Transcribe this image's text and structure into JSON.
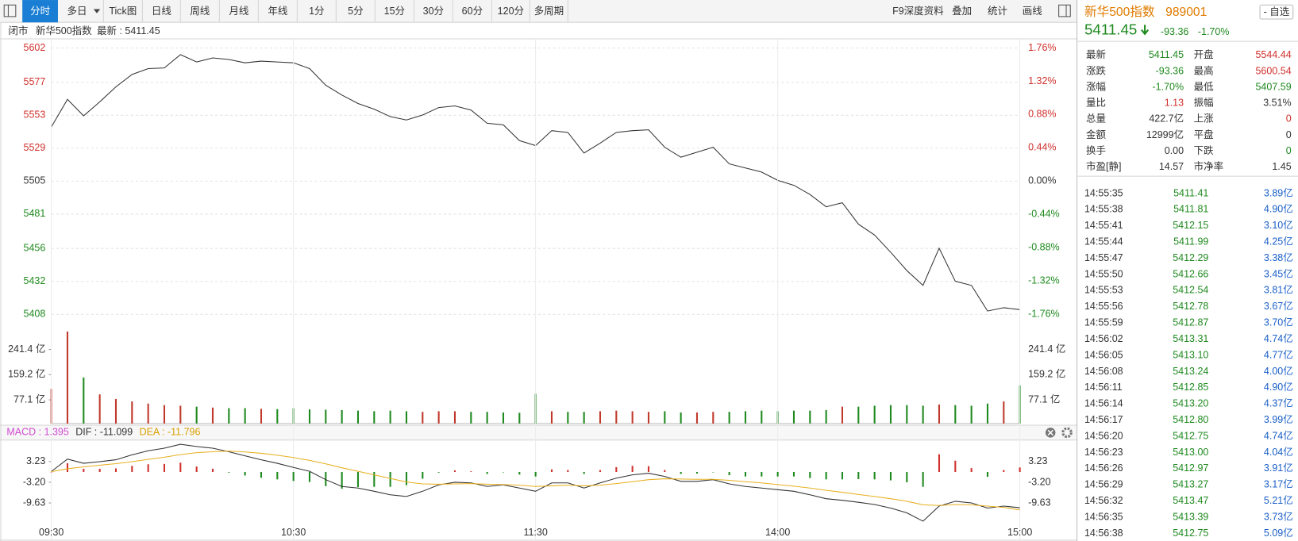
{
  "toolbar": {
    "left": [
      "分时",
      "多日",
      "Tick图",
      "日线",
      "周线",
      "月线",
      "年线",
      "1分",
      "5分",
      "15分",
      "30分",
      "60分",
      "120分",
      "多周期"
    ],
    "right": [
      "F9深度资料",
      "叠加",
      "统计",
      "画线"
    ]
  },
  "info_bar": [
    "闭市",
    "新华500指数",
    "最新 : 5411.45"
  ],
  "chart_data": [
    {
      "type": "line",
      "x": [
        0,
        4,
        8,
        12,
        16,
        20,
        24,
        28,
        32,
        36,
        40,
        44,
        48,
        52,
        56,
        60,
        64,
        68,
        72,
        76,
        80,
        84,
        88,
        92,
        96,
        100,
        104,
        108,
        112,
        116,
        120,
        124,
        128,
        132,
        136,
        140,
        144,
        148,
        152,
        156,
        160,
        164,
        168,
        172,
        176,
        180,
        184,
        188,
        192,
        196,
        200,
        204,
        208,
        212,
        216,
        220,
        224,
        228,
        232,
        236,
        240
      ],
      "values": [
        5544.44,
        5564.6,
        5552.6,
        5562.8,
        5573.7,
        5582.7,
        5587.0,
        5587.5,
        5597.2,
        5591.8,
        5594.8,
        5593.6,
        5591.2,
        5592.4,
        5591.8,
        5591.2,
        5587.0,
        5574.9,
        5567.7,
        5561.6,
        5557.4,
        5552.0,
        5549.6,
        5553.2,
        5558.6,
        5559.8,
        5556.8,
        5547.2,
        5546.0,
        5534.5,
        5530.9,
        5541.8,
        5540.5,
        5525.5,
        5532.7,
        5540.5,
        5541.8,
        5542.4,
        5529.7,
        5522.5,
        5526.1,
        5529.7,
        5517.6,
        5514.6,
        5511.6,
        5505.6,
        5502.0,
        5495.3,
        5486.3,
        5489.3,
        5473.7,
        5465.8,
        5453.2,
        5439.9,
        5429.1,
        5456.2,
        5432.1,
        5429.1,
        5410.4,
        5412.8,
        5411.45
      ],
      "color": "#333333",
      "xlim": [
        0,
        240
      ],
      "ylim": [
        5408,
        5602
      ],
      "yticks": [
        5602,
        5577,
        5553,
        5529,
        5505,
        5481,
        5456,
        5432,
        5408
      ],
      "y2lim": [
        -1.76,
        1.76
      ],
      "y2ticks": [
        {
          "value": 1.76,
          "label": "1.76%"
        },
        {
          "value": 1.32,
          "label": "1.32%"
        },
        {
          "value": 0.88,
          "label": "0.88%"
        },
        {
          "value": 0.44,
          "label": "0.44%"
        },
        {
          "value": 0,
          "label": "0.00%"
        },
        {
          "value": -0.44,
          "label": "-0.44%"
        },
        {
          "value": -0.88,
          "label": "-0.88%"
        },
        {
          "value": -1.32,
          "label": "-1.32%"
        },
        {
          "value": -1.76,
          "label": "-1.76%"
        }
      ],
      "grid": true,
      "tick_colors": "by_sign",
      "up_color": "#d0312d",
      "down_color": "#1f8a1f"
    },
    {
      "type": "bar",
      "x": [
        0,
        4,
        8,
        12,
        16,
        20,
        24,
        28,
        32,
        36,
        40,
        44,
        48,
        52,
        56,
        60,
        64,
        68,
        72,
        76,
        80,
        84,
        88,
        92,
        96,
        100,
        104,
        108,
        112,
        116,
        120,
        124,
        128,
        132,
        136,
        140,
        144,
        148,
        152,
        156,
        160,
        164,
        168,
        172,
        176,
        180,
        184,
        188,
        192,
        196,
        200,
        204,
        208,
        212,
        216,
        220,
        224,
        228,
        232,
        236,
        240
      ],
      "values": [
        113,
        300,
        150,
        95,
        80,
        72,
        65,
        60,
        58,
        55,
        52,
        50,
        50,
        48,
        47,
        50,
        46,
        45,
        44,
        42,
        40,
        42,
        40,
        38,
        40,
        40,
        38,
        38,
        36,
        35,
        97,
        40,
        38,
        38,
        40,
        42,
        40,
        38,
        40,
        36,
        36,
        38,
        38,
        40,
        42,
        40,
        42,
        42,
        44,
        55,
        55,
        58,
        60,
        60,
        58,
        62,
        60,
        58,
        65,
        72,
        124
      ],
      "xlim": [
        0,
        240
      ],
      "ylim": [
        0,
        329
      ],
      "yticks": [
        {
          "value": 241.4,
          "label": "241.4 亿"
        },
        {
          "value": 159.2,
          "label": "159.2 亿"
        },
        {
          "value": 77.1,
          "label": "77.1 亿"
        }
      ],
      "ticks_both_sides": true,
      "up_color": "#c0392b",
      "down_color": "#1f8a1f"
    },
    {
      "type": "macd",
      "legend": [
        {
          "text": "MACD : 1.395",
          "color": "#d24bd2"
        },
        {
          "text": "DIF : -11.099",
          "color": "#333333"
        },
        {
          "text": "DEA : -11.796",
          "color": "#d9a000"
        }
      ],
      "x": [
        0,
        4,
        8,
        12,
        16,
        20,
        24,
        28,
        32,
        36,
        40,
        44,
        48,
        52,
        56,
        60,
        64,
        68,
        72,
        76,
        80,
        84,
        88,
        92,
        96,
        100,
        104,
        108,
        112,
        116,
        120,
        124,
        128,
        132,
        136,
        140,
        144,
        148,
        152,
        156,
        160,
        164,
        168,
        172,
        176,
        180,
        184,
        188,
        192,
        196,
        200,
        204,
        208,
        212,
        216,
        220,
        224,
        228,
        232,
        236,
        240
      ],
      "xlim": [
        0,
        240
      ],
      "ylim": [
        -20.4,
        9.14
      ],
      "yticks": [
        3.23,
        {
          "value": -3.2,
          "label": "-3.20"
        },
        -9.63
      ],
      "xticks": [
        {
          "value": 0,
          "label": "09:30"
        },
        {
          "value": 60,
          "label": "10:30"
        },
        {
          "value": 120,
          "label": "11:30"
        },
        {
          "value": 180,
          "label": "14:00"
        },
        {
          "value": 240,
          "label": "15:00"
        }
      ],
      "ticks_both_sides": true,
      "xgrid": true,
      "series": [
        {
          "style": "bar",
          "up_color": "#d0312d",
          "down_color": "#1f8a1f",
          "values": [
            0.0,
            2.7,
            1.0,
            1.0,
            1.1,
            1.9,
            2.4,
            2.5,
            2.9,
            1.7,
            1.0,
            -0.2,
            -1.1,
            -1.8,
            -2.3,
            -2.8,
            -3.1,
            -4.4,
            -5.2,
            -4.7,
            -4.6,
            -4.6,
            -4.1,
            -2.1,
            -0.2,
            0.5,
            0.2,
            -0.6,
            -0.1,
            -0.8,
            -1.4,
            0.8,
            0.6,
            -0.6,
            0.6,
            1.5,
            1.9,
            1.8,
            0.6,
            -0.6,
            -0.5,
            -0.1,
            -1.0,
            -1.4,
            -1.4,
            -1.4,
            -1.4,
            -1.9,
            -2.3,
            -2.3,
            -2.2,
            -2.3,
            -2.6,
            -3.2,
            -4.6,
            5.5,
            3.5,
            1.2,
            -1.5,
            0.6,
            1.395
          ]
        },
        {
          "style": "line",
          "color": "#333333",
          "values": [
            0.15,
            4.0,
            2.7,
            3.2,
            3.8,
            5.3,
            6.6,
            7.4,
            8.6,
            7.9,
            7.4,
            6.3,
            5.0,
            3.8,
            2.7,
            1.4,
            0.2,
            -2.4,
            -4.5,
            -5.0,
            -6.0,
            -7.1,
            -7.6,
            -6.0,
            -4.0,
            -3.2,
            -3.4,
            -4.5,
            -4.0,
            -5.0,
            -6.0,
            -3.4,
            -3.4,
            -5.0,
            -3.4,
            -1.9,
            -0.9,
            -0.4,
            -1.4,
            -2.9,
            -2.9,
            -2.4,
            -3.7,
            -4.5,
            -5.0,
            -5.5,
            -6.0,
            -7.1,
            -8.3,
            -8.8,
            -9.4,
            -10.1,
            -11.2,
            -12.7,
            -15.3,
            -10.6,
            -9.1,
            -9.6,
            -11.2,
            -10.6,
            -11.099
          ]
        },
        {
          "style": "line",
          "color": "#e8b020",
          "values": [
            0.1,
            1.0,
            1.6,
            2.1,
            2.6,
            3.2,
            3.9,
            4.6,
            5.4,
            6.0,
            6.3,
            6.5,
            6.2,
            5.8,
            5.2,
            4.5,
            3.6,
            2.5,
            1.3,
            0.2,
            -0.9,
            -2.0,
            -3.1,
            -3.7,
            -3.8,
            -3.7,
            -3.6,
            -3.8,
            -3.9,
            -4.1,
            -4.5,
            -4.3,
            -4.1,
            -4.3,
            -4.1,
            -3.6,
            -3.0,
            -2.4,
            -2.1,
            -2.2,
            -2.3,
            -2.3,
            -2.6,
            -3.0,
            -3.4,
            -3.9,
            -4.4,
            -5.0,
            -5.7,
            -6.3,
            -7.0,
            -7.6,
            -8.3,
            -9.1,
            -10.2,
            -10.4,
            -10.1,
            -10.2,
            -10.6,
            -11.0,
            -11.796
          ]
        }
      ]
    }
  ],
  "quote_header": {
    "name": "新华500指数",
    "code": "989001",
    "button": "- 自选",
    "price": "5411.45",
    "change": "-93.36",
    "change_pct": "-1.70%"
  },
  "quote": {
    "rows": [
      [
        "最新",
        "5411.45",
        "开盘",
        "5544.44"
      ],
      [
        "涨跌",
        "-93.36",
        "最高",
        "5600.54"
      ],
      [
        "涨幅",
        "-1.70%",
        "最低",
        "5407.59"
      ],
      [
        "量比",
        "1.13",
        "振幅",
        "3.51%"
      ],
      [
        "总量",
        "422.7亿",
        "上涨",
        "0"
      ],
      [
        "金额",
        "12999亿",
        "平盘",
        "0"
      ],
      [
        "换手",
        "0.00",
        "下跌",
        "0"
      ],
      [
        "市盈[静]",
        "14.57",
        "市净率",
        "1.45"
      ]
    ]
  },
  "trades": {
    "rows": [
      [
        "14:55:35",
        "5411.41",
        "3.89亿"
      ],
      [
        "14:55:38",
        "5411.81",
        "4.90亿"
      ],
      [
        "14:55:41",
        "5412.15",
        "3.10亿"
      ],
      [
        "14:55:44",
        "5411.99",
        "4.25亿"
      ],
      [
        "14:55:47",
        "5412.29",
        "3.38亿"
      ],
      [
        "14:55:50",
        "5412.66",
        "3.45亿"
      ],
      [
        "14:55:53",
        "5412.54",
        "3.81亿"
      ],
      [
        "14:55:56",
        "5412.78",
        "3.67亿"
      ],
      [
        "14:55:59",
        "5412.87",
        "3.70亿"
      ],
      [
        "14:56:02",
        "5413.31",
        "4.74亿"
      ],
      [
        "14:56:05",
        "5413.10",
        "4.77亿"
      ],
      [
        "14:56:08",
        "5413.24",
        "4.00亿"
      ],
      [
        "14:56:11",
        "5412.85",
        "4.90亿"
      ],
      [
        "14:56:14",
        "5413.20",
        "4.37亿"
      ],
      [
        "14:56:17",
        "5412.80",
        "3.99亿"
      ],
      [
        "14:56:20",
        "5412.75",
        "4.74亿"
      ],
      [
        "14:56:23",
        "5413.00",
        "4.04亿"
      ],
      [
        "14:56:26",
        "5412.97",
        "3.91亿"
      ],
      [
        "14:56:29",
        "5413.27",
        "3.17亿"
      ],
      [
        "14:56:32",
        "5413.47",
        "5.21亿"
      ],
      [
        "14:56:35",
        "5413.39",
        "3.73亿"
      ],
      [
        "14:56:38",
        "5412.75",
        "5.09亿"
      ]
    ]
  }
}
